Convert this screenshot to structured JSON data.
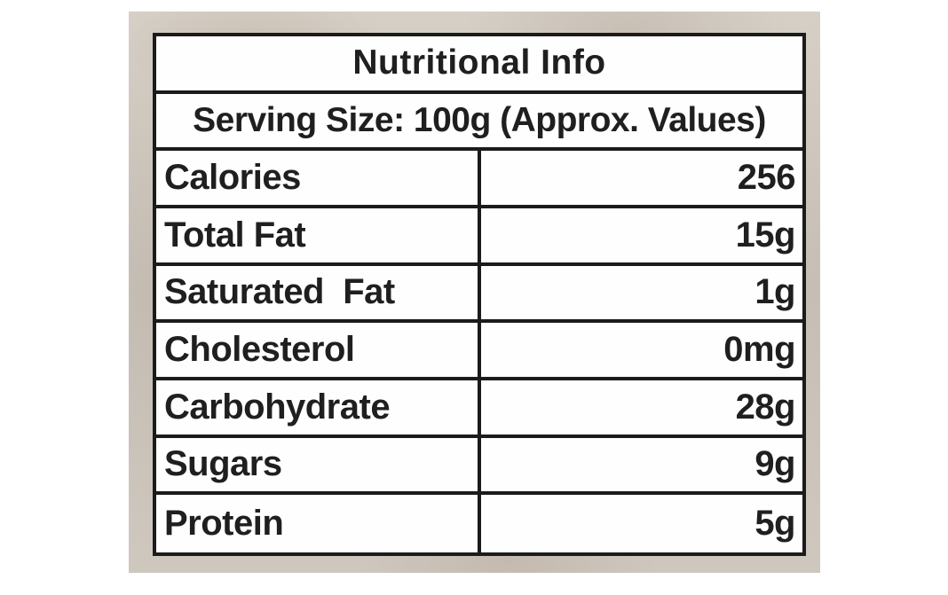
{
  "label": {
    "title": "Nutritional Info",
    "serving_line": "Serving Size: 100g (Approx. Values)",
    "rows": [
      {
        "label": "Calories",
        "value": "256"
      },
      {
        "label": "Total Fat",
        "value": "15g"
      },
      {
        "label": "Saturated  Fat",
        "value": "1g"
      },
      {
        "label": "Cholesterol",
        "value": "0mg"
      },
      {
        "label": "Carbohydrate",
        "value": "28g"
      },
      {
        "label": "Sugars",
        "value": "9g"
      },
      {
        "label": "Protein",
        "value": "5g"
      }
    ]
  },
  "colors": {
    "border": "#1b1b1b",
    "cell_background": "#fefefe",
    "backdrop": "#d0cac1",
    "page_background": "#ffffff",
    "text": "#1f1f1f"
  }
}
